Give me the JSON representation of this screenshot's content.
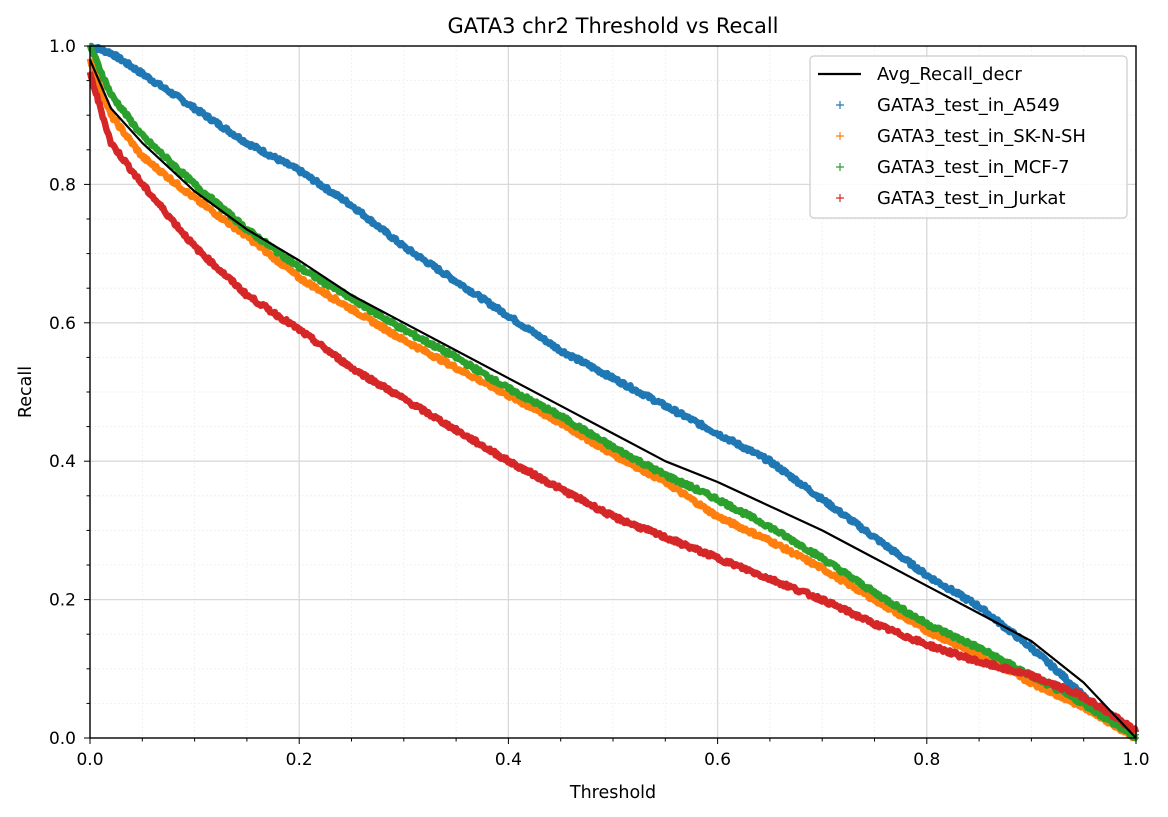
{
  "chart_data": {
    "type": "scatter",
    "title": "GATA3 chr2 Threshold vs Recall",
    "xlabel": "Threshold",
    "ylabel": "Recall",
    "xlim": [
      0.0,
      1.0
    ],
    "ylim": [
      0.0,
      1.0
    ],
    "xticks": [
      "0.0",
      "0.2",
      "0.4",
      "0.6",
      "0.8",
      "1.0"
    ],
    "yticks": [
      "0.0",
      "0.2",
      "0.4",
      "0.6",
      "0.8",
      "1.0"
    ],
    "grid": true,
    "minor_grid": true,
    "legend_position": "top-right",
    "line_series": {
      "name": "Avg_Recall_decr",
      "color": "#000000",
      "x": [
        0.0,
        0.02,
        0.05,
        0.1,
        0.15,
        0.2,
        0.25,
        0.3,
        0.35,
        0.4,
        0.45,
        0.5,
        0.55,
        0.6,
        0.65,
        0.7,
        0.75,
        0.8,
        0.85,
        0.9,
        0.95,
        1.0
      ],
      "y": [
        0.98,
        0.91,
        0.86,
        0.79,
        0.735,
        0.69,
        0.64,
        0.6,
        0.56,
        0.52,
        0.48,
        0.44,
        0.4,
        0.37,
        0.335,
        0.3,
        0.26,
        0.22,
        0.18,
        0.14,
        0.08,
        0.0
      ]
    },
    "series": [
      {
        "name": "GATA3_test_in_A549",
        "color": "#1f77b4",
        "marker": "+",
        "x": [
          0.0,
          0.02,
          0.05,
          0.1,
          0.15,
          0.2,
          0.25,
          0.3,
          0.35,
          0.4,
          0.45,
          0.5,
          0.55,
          0.6,
          0.65,
          0.7,
          0.75,
          0.8,
          0.85,
          0.9,
          0.93,
          0.95,
          0.97,
          1.0
        ],
        "y": [
          1.0,
          0.99,
          0.96,
          0.91,
          0.86,
          0.82,
          0.77,
          0.71,
          0.66,
          0.61,
          0.56,
          0.52,
          0.48,
          0.44,
          0.4,
          0.345,
          0.29,
          0.235,
          0.19,
          0.13,
          0.09,
          0.06,
          0.03,
          0.005
        ]
      },
      {
        "name": "GATA3_test_in_SK-N-SH",
        "color": "#ff7f0e",
        "marker": "+",
        "x": [
          0.0,
          0.02,
          0.05,
          0.1,
          0.15,
          0.2,
          0.25,
          0.3,
          0.35,
          0.4,
          0.45,
          0.5,
          0.55,
          0.6,
          0.65,
          0.7,
          0.75,
          0.8,
          0.85,
          0.9,
          0.95,
          1.0
        ],
        "y": [
          0.98,
          0.9,
          0.84,
          0.78,
          0.725,
          0.665,
          0.62,
          0.575,
          0.535,
          0.495,
          0.455,
          0.41,
          0.37,
          0.32,
          0.285,
          0.245,
          0.2,
          0.155,
          0.12,
          0.08,
          0.045,
          0.0
        ]
      },
      {
        "name": "GATA3_test_in_MCF-7",
        "color": "#2ca02c",
        "marker": "+",
        "x": [
          0.0,
          0.02,
          0.05,
          0.1,
          0.15,
          0.2,
          0.25,
          0.3,
          0.35,
          0.4,
          0.45,
          0.5,
          0.55,
          0.6,
          0.65,
          0.7,
          0.75,
          0.8,
          0.85,
          0.9,
          0.95,
          1.0
        ],
        "y": [
          1.0,
          0.93,
          0.87,
          0.8,
          0.735,
          0.68,
          0.635,
          0.59,
          0.55,
          0.505,
          0.465,
          0.42,
          0.38,
          0.345,
          0.305,
          0.26,
          0.21,
          0.165,
          0.13,
          0.09,
          0.05,
          0.0
        ]
      },
      {
        "name": "GATA3_test_in_Jurkat",
        "color": "#d62728",
        "marker": "+",
        "x": [
          0.0,
          0.02,
          0.05,
          0.1,
          0.15,
          0.2,
          0.25,
          0.3,
          0.35,
          0.4,
          0.45,
          0.5,
          0.55,
          0.6,
          0.65,
          0.7,
          0.75,
          0.8,
          0.85,
          0.9,
          0.95,
          1.0
        ],
        "y": [
          0.96,
          0.86,
          0.8,
          0.71,
          0.64,
          0.59,
          0.535,
          0.49,
          0.445,
          0.4,
          0.36,
          0.32,
          0.29,
          0.26,
          0.23,
          0.2,
          0.165,
          0.135,
          0.11,
          0.09,
          0.06,
          0.01
        ]
      }
    ]
  }
}
